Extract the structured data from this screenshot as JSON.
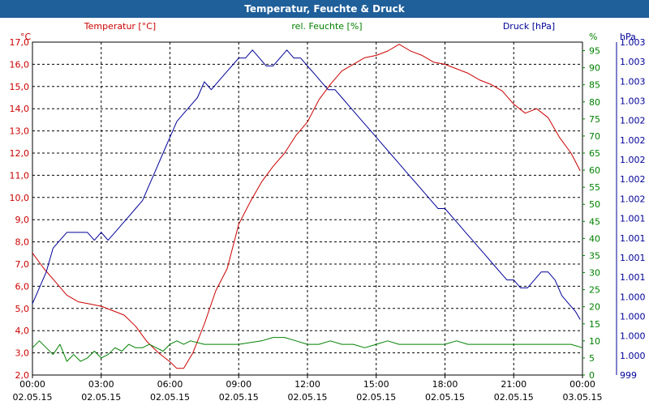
{
  "window": {
    "title": "Temperatur, Feuchte & Druck"
  },
  "chart_data": {
    "type": "line",
    "title": "Temperatur, Feuchte & Druck",
    "colors": {
      "temperature": "#cc0000",
      "humidity": "#008000",
      "pressure": "#000099",
      "titlebar": "#1f5f9a"
    },
    "axes": {
      "left": {
        "unit": "°C",
        "range": [
          2.0,
          17.0
        ],
        "ticks": [
          "2,0",
          "3,0",
          "4,0",
          "5,0",
          "6,0",
          "7,0",
          "8,0",
          "9,0",
          "10,0",
          "11,0",
          "12,0",
          "13,0",
          "14,0",
          "15,0",
          "16,0",
          "17,0"
        ]
      },
      "right1": {
        "unit": "%",
        "range": [
          0,
          97.5
        ],
        "ticks": [
          "0",
          "5",
          "10",
          "15",
          "20",
          "25",
          "30",
          "35",
          "40",
          "45",
          "50",
          "55",
          "60",
          "65",
          "70",
          "75",
          "80",
          "85",
          "90",
          "95"
        ]
      },
      "right2": {
        "unit": "hPa",
        "range": [
          999,
          1003.2
        ],
        "ticks": [
          "999",
          "1.000",
          "1.000",
          "1.000",
          "1.000",
          "1.001",
          "1.001",
          "1.001",
          "1.001",
          "1.002",
          "1.002",
          "1.002",
          "1.002",
          "1.002",
          "1.003",
          "1.003",
          "1.003",
          "1.003"
        ]
      },
      "x": {
        "range": [
          0,
          24
        ],
        "ticks": [
          {
            "time": "00:00",
            "date": "02.05.15"
          },
          {
            "time": "03:00",
            "date": "02.05.15"
          },
          {
            "time": "06:00",
            "date": "02.05.15"
          },
          {
            "time": "09:00",
            "date": "02.05.15"
          },
          {
            "time": "12:00",
            "date": "02.05.15"
          },
          {
            "time": "15:00",
            "date": "02.05.15"
          },
          {
            "time": "18:00",
            "date": "02.05.15"
          },
          {
            "time": "21:00",
            "date": "02.05.15"
          },
          {
            "time": "00:00",
            "date": "03.05.15"
          }
        ]
      }
    },
    "legend": {
      "temperature": "Temperatur [°C]",
      "humidity": "rel. Feuchte [%]",
      "pressure": "Druck [hPa]"
    },
    "series": [
      {
        "name": "Temperatur [°C]",
        "axis": "left",
        "x": [
          0,
          0.5,
          1,
          1.5,
          2,
          2.5,
          3,
          3.5,
          4,
          4.5,
          5,
          5.5,
          6,
          6.3,
          6.6,
          7,
          7.5,
          8,
          8.5,
          9,
          9.5,
          10,
          10.5,
          11,
          11.5,
          12,
          12.5,
          13,
          13.5,
          14,
          14.5,
          15,
          15.5,
          16,
          16.5,
          17,
          17.5,
          18,
          18.5,
          19,
          19.5,
          20,
          20.5,
          21,
          21.5,
          22,
          22.5,
          23,
          23.5,
          23.9
        ],
        "values": [
          7.5,
          6.8,
          6.2,
          5.6,
          5.3,
          5.2,
          5.1,
          4.9,
          4.7,
          4.2,
          3.5,
          3.0,
          2.6,
          2.3,
          2.3,
          3.0,
          4.3,
          5.8,
          6.8,
          8.8,
          9.8,
          10.7,
          11.4,
          12.0,
          12.8,
          13.4,
          14.4,
          15.1,
          15.7,
          16.0,
          16.3,
          16.4,
          16.6,
          16.9,
          16.6,
          16.4,
          16.1,
          16.0,
          15.8,
          15.6,
          15.3,
          15.1,
          14.8,
          14.2,
          13.8,
          14.0,
          13.6,
          12.7,
          12.0,
          11.2
        ]
      },
      {
        "name": "rel. Feuchte [%]",
        "axis": "right1",
        "x": [
          0,
          0.3,
          0.6,
          0.9,
          1.2,
          1.5,
          1.8,
          2.1,
          2.4,
          2.7,
          3.0,
          3.3,
          3.6,
          3.9,
          4.2,
          4.5,
          4.8,
          5.1,
          5.4,
          5.7,
          6.0,
          6.3,
          6.6,
          6.9,
          7.5,
          8,
          9,
          10,
          10.5,
          11,
          11.5,
          12,
          12.5,
          13,
          13.5,
          14,
          14.5,
          15,
          15.5,
          16,
          16.5,
          17,
          17.5,
          18,
          18.5,
          19,
          19.5,
          20,
          20.5,
          21,
          21.5,
          22,
          22.5,
          23,
          23.5,
          24
        ],
        "values": [
          8,
          10,
          8,
          6,
          9,
          4,
          6,
          4,
          5,
          7,
          5,
          6,
          8,
          7,
          9,
          8,
          8,
          9,
          8,
          7,
          9,
          10,
          9,
          10,
          9,
          9,
          9,
          10,
          11,
          11,
          10,
          9,
          9,
          10,
          9,
          9,
          8,
          9,
          10,
          9,
          9,
          9,
          9,
          9,
          10,
          9,
          9,
          9,
          9,
          9,
          9,
          9,
          9,
          9,
          9,
          8
        ]
      },
      {
        "name": "Druck [hPa]",
        "axis": "right2",
        "x": [
          0,
          0.3,
          0.6,
          0.9,
          1.2,
          1.5,
          1.8,
          2.1,
          2.4,
          2.7,
          3.0,
          3.3,
          3.6,
          3.9,
          4.2,
          4.5,
          4.8,
          5.1,
          5.4,
          5.7,
          6.0,
          6.3,
          6.6,
          6.9,
          7.2,
          7.5,
          7.8,
          8.1,
          8.4,
          8.7,
          9.0,
          9.3,
          9.6,
          9.9,
          10.2,
          10.5,
          10.8,
          11.1,
          11.4,
          11.7,
          12.0,
          12.3,
          12.6,
          12.9,
          13.2,
          13.5,
          13.8,
          14.1,
          14.4,
          14.7,
          15.0,
          15.3,
          15.6,
          15.9,
          16.2,
          16.5,
          16.8,
          17.1,
          17.4,
          17.7,
          18.0,
          18.3,
          18.6,
          18.9,
          19.2,
          19.5,
          19.8,
          20.1,
          20.4,
          20.7,
          21.0,
          21.3,
          21.6,
          21.9,
          22.2,
          22.5,
          22.8,
          23.1,
          23.4,
          23.7,
          23.9
        ],
        "values": [
          999.9,
          1000.1,
          1000.3,
          1000.6,
          1000.7,
          1000.8,
          1000.8,
          1000.8,
          1000.8,
          1000.7,
          1000.8,
          1000.7,
          1000.8,
          1000.9,
          1001.0,
          1001.1,
          1001.2,
          1001.4,
          1001.6,
          1001.8,
          1002.0,
          1002.2,
          1002.3,
          1002.4,
          1002.5,
          1002.7,
          1002.6,
          1002.7,
          1002.8,
          1002.9,
          1003.0,
          1003.0,
          1003.1,
          1003.0,
          1002.9,
          1002.9,
          1003.0,
          1003.1,
          1003.0,
          1003.0,
          1002.9,
          1002.8,
          1002.7,
          1002.6,
          1002.6,
          1002.5,
          1002.4,
          1002.3,
          1002.2,
          1002.1,
          1002.0,
          1001.9,
          1001.8,
          1001.7,
          1001.6,
          1001.5,
          1001.4,
          1001.3,
          1001.2,
          1001.1,
          1001.1,
          1001.0,
          1000.9,
          1000.8,
          1000.7,
          1000.6,
          1000.5,
          1000.4,
          1000.3,
          1000.2,
          1000.2,
          1000.1,
          1000.1,
          1000.2,
          1000.3,
          1000.3,
          1000.2,
          1000.0,
          999.9,
          999.8,
          999.7
        ]
      }
    ]
  }
}
